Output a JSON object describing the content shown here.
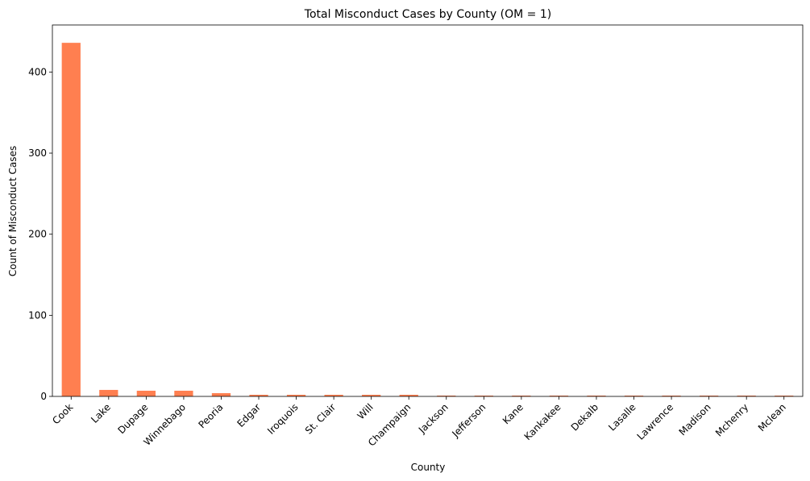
{
  "chart_data": {
    "type": "bar",
    "title": "Total Misconduct Cases by County (OM = 1)",
    "xlabel": "County",
    "ylabel": "Count of Misconduct Cases",
    "categories": [
      "Cook",
      "Lake",
      "Dupage",
      "Winnebago",
      "Peoria",
      "Edgar",
      "Iroquois",
      "St. Clair",
      "Will",
      "Champaign",
      "Jackson",
      "Jefferson",
      "Kane",
      "Kankakee",
      "Dekalb",
      "Lasalle",
      "Lawrence",
      "Madison",
      "Mchenry",
      "Mclean"
    ],
    "values": [
      436,
      8,
      7,
      7,
      4,
      2,
      2,
      2,
      2,
      2,
      1,
      1,
      1,
      1,
      1,
      1,
      1,
      1,
      1,
      1
    ],
    "ylim": [
      0,
      458
    ],
    "yticks": [
      0,
      100,
      200,
      300,
      400
    ],
    "color": "#ff7f50",
    "grid": false,
    "legend": "none"
  }
}
